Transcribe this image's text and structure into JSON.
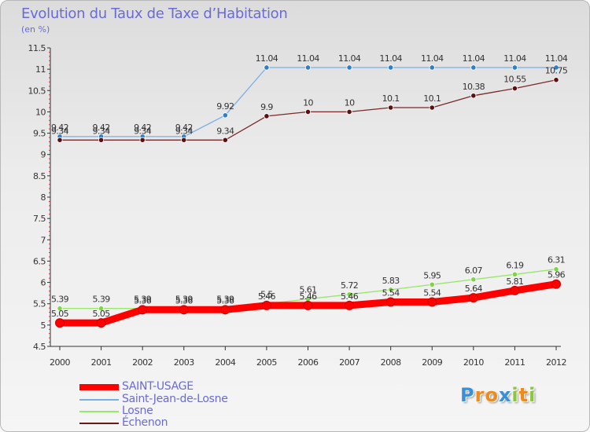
{
  "header": {
    "title": "Evolution du Taux de Taxe d’Habitation",
    "subtitle": "(en %)"
  },
  "chart_data": {
    "type": "line",
    "title": "Evolution du Taux de Taxe d’Habitation",
    "ylabel": "(en %)",
    "xlabel": "",
    "x": [
      "2000",
      "2001",
      "2002",
      "2003",
      "2004",
      "2005",
      "2006",
      "2007",
      "2008",
      "2009",
      "2010",
      "2011",
      "2012"
    ],
    "ylim": [
      4.5,
      11.5
    ],
    "yticks": [
      "4.5",
      "5",
      "5.5",
      "6",
      "6.5",
      "7",
      "7.5",
      "8",
      "8.5",
      "9",
      "9.5",
      "10",
      "10.5",
      "11",
      "11.5"
    ],
    "grid": false,
    "legend_position": "bottom-left",
    "series": [
      {
        "name": "SAINT-USAGE",
        "color": "#ff0000",
        "values": [
          5.05,
          5.05,
          5.36,
          5.36,
          5.36,
          5.46,
          5.46,
          5.46,
          5.54,
          5.54,
          5.64,
          5.81,
          5.96
        ],
        "labels": [
          "5.05",
          "5.05",
          "5.36",
          "5.36",
          "5.36",
          "5.46",
          "5.46",
          "5.46",
          "5.54",
          "5.54",
          "5.64",
          "5.81",
          "5.96"
        ]
      },
      {
        "name": "Saint-Jean-de-Losne",
        "color": "#3e8ed0",
        "values": [
          9.42,
          9.42,
          9.42,
          9.42,
          9.92,
          11.04,
          11.04,
          11.04,
          11.04,
          11.04,
          11.04,
          11.04,
          11.04
        ],
        "labels": [
          "9.42",
          "9.42",
          "9.42",
          "9.42",
          "9.92",
          "11.04",
          "11.04",
          "11.04",
          "11.04",
          "11.04",
          "11.04",
          "11.04",
          "11.04"
        ]
      },
      {
        "name": "Losne",
        "color": "#98e86a",
        "values": [
          5.39,
          5.39,
          5.39,
          5.39,
          5.39,
          5.5,
          5.61,
          5.72,
          5.83,
          5.95,
          6.07,
          6.19,
          6.31
        ],
        "labels": [
          "5.39",
          "5.39",
          "5.39",
          "5.39",
          "5.39",
          "5.5",
          "5.61",
          "5.72",
          "5.83",
          "5.95",
          "6.07",
          "6.19",
          "6.31"
        ]
      },
      {
        "name": "Échenon",
        "color": "#6b1a1a",
        "values": [
          9.34,
          9.34,
          9.34,
          9.34,
          9.34,
          9.9,
          10,
          10,
          10.1,
          10.1,
          10.38,
          10.55,
          10.75
        ],
        "labels": [
          "9.34",
          "9.34",
          "9.34",
          "9.34",
          "9.34",
          "9.9",
          "10",
          "10",
          "10.1",
          "10.1",
          "10.38",
          "10.55",
          "10.75"
        ]
      }
    ]
  },
  "legend": {
    "items": [
      {
        "label": "SAINT-USAGE",
        "color": "#ff0000"
      },
      {
        "label": "Saint-Jean-de-Losne",
        "color": "#7aaee6"
      },
      {
        "label": "Losne",
        "color": "#98e86a"
      },
      {
        "label": "Échenon",
        "color": "#6b1a1a"
      }
    ]
  },
  "logo": {
    "letters": [
      "P",
      "r",
      "o",
      "x",
      "i",
      "t",
      "i"
    ],
    "colors": [
      "#3a8fd8",
      "#f08a1c",
      "#f08a1c",
      "#3a8fd8",
      "#8cc63e",
      "#f08a1c",
      "#8cc63e"
    ]
  }
}
